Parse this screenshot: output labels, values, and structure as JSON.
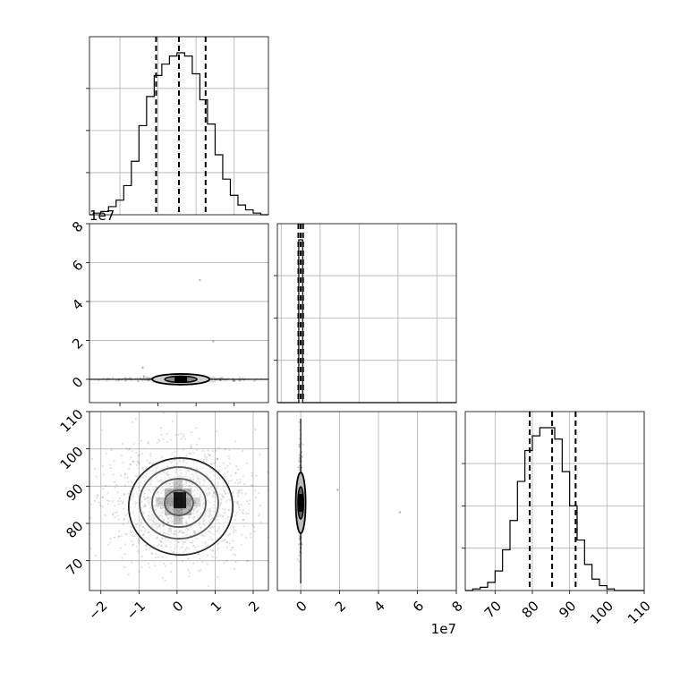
{
  "chart_data": {
    "type": "corner",
    "panels": [
      {
        "id": "p00",
        "type": "histogram",
        "x_ticks": [],
        "xlim": [
          -2.3,
          2.4
        ],
        "x_offset_label": "1e7",
        "bins": [
          [
            -2.3,
            0.0
          ],
          [
            -2.1,
            0.01
          ],
          [
            -1.9,
            0.02
          ],
          [
            -1.7,
            0.05
          ],
          [
            -1.5,
            0.09
          ],
          [
            -1.3,
            0.18
          ],
          [
            -1.1,
            0.33
          ],
          [
            -0.9,
            0.55
          ],
          [
            -0.7,
            0.73
          ],
          [
            -0.5,
            0.86
          ],
          [
            -0.3,
            0.93
          ],
          [
            -0.1,
            0.98
          ],
          [
            0.1,
            1.0
          ],
          [
            0.3,
            0.98
          ],
          [
            0.5,
            0.87
          ],
          [
            0.7,
            0.71
          ],
          [
            0.9,
            0.56
          ],
          [
            1.1,
            0.37
          ],
          [
            1.3,
            0.22
          ],
          [
            1.5,
            0.12
          ],
          [
            1.7,
            0.06
          ],
          [
            1.9,
            0.03
          ],
          [
            2.1,
            0.01
          ],
          [
            2.3,
            0.0
          ]
        ],
        "quantiles": [
          -0.55,
          0.05,
          0.75
        ]
      },
      {
        "id": "p10",
        "type": "scatter",
        "xlim": [
          -2.3,
          2.4
        ],
        "ylim": [
          -1.2,
          8.0
        ],
        "x_ticks": [],
        "y_ticks": [
          0,
          2,
          4,
          6,
          8
        ],
        "y_offset_label": "1e7",
        "center": [
          0.1,
          0.0
        ],
        "outliers": [
          [
            0.6,
            5.1
          ],
          [
            0.95,
            1.95
          ],
          [
            -0.9,
            0.6
          ]
        ]
      },
      {
        "id": "p11",
        "type": "histogram",
        "xlim": [
          -1.2,
          8.0
        ],
        "x_ticks": [],
        "bins": [
          [
            -0.2,
            0.0
          ],
          [
            0.0,
            1.0
          ],
          [
            0.2,
            0.0
          ]
        ],
        "quantiles": [
          -0.12,
          0.0,
          0.12
        ]
      },
      {
        "id": "p20",
        "type": "scatter",
        "xlim": [
          -2.3,
          2.4
        ],
        "ylim": [
          62,
          110
        ],
        "x_ticks": [
          -2,
          -1,
          0,
          1,
          2
        ],
        "y_ticks": [
          70,
          80,
          90,
          100,
          110
        ],
        "center": [
          0.05,
          85.5
        ]
      },
      {
        "id": "p21",
        "type": "scatter",
        "xlim": [
          -1.2,
          8.0
        ],
        "ylim": [
          62,
          110
        ],
        "x_ticks": [
          0,
          2,
          4,
          6,
          8
        ],
        "y_ticks": [],
        "x_offset_label": "1e7",
        "center": [
          0.0,
          85.5
        ],
        "outliers": [
          [
            1.9,
            89
          ],
          [
            5.1,
            83
          ]
        ]
      },
      {
        "id": "p22",
        "type": "histogram",
        "xlim": [
          62,
          110
        ],
        "x_ticks": [
          70,
          80,
          90,
          100,
          110
        ],
        "bins": [
          [
            63,
            0.0
          ],
          [
            65,
            0.01
          ],
          [
            67,
            0.02
          ],
          [
            69,
            0.05
          ],
          [
            71,
            0.12
          ],
          [
            73,
            0.25
          ],
          [
            75,
            0.43
          ],
          [
            77,
            0.67
          ],
          [
            79,
            0.86
          ],
          [
            81,
            0.95
          ],
          [
            83,
            1.0
          ],
          [
            85,
            1.0
          ],
          [
            87,
            0.93
          ],
          [
            89,
            0.73
          ],
          [
            91,
            0.52
          ],
          [
            93,
            0.31
          ],
          [
            95,
            0.16
          ],
          [
            97,
            0.07
          ],
          [
            99,
            0.03
          ],
          [
            101,
            0.01
          ],
          [
            103,
            0.0
          ]
        ],
        "quantiles": [
          79.3,
          85.3,
          91.6
        ]
      }
    ]
  }
}
